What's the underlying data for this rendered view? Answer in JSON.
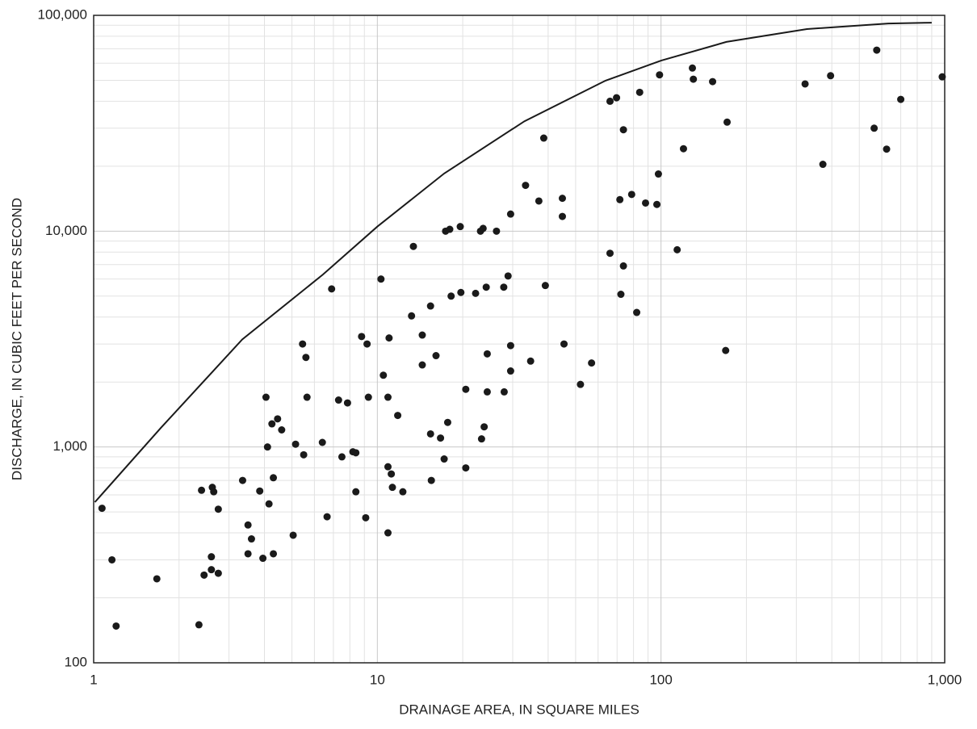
{
  "chart_data": {
    "type": "scatter",
    "xlabel": "DRAINAGE AREA, IN SQUARE MILES",
    "ylabel": "DISCHARGE, IN CUBIC FEET PER SECOND",
    "log_x": true,
    "log_y": true,
    "grid": true,
    "xlim": [
      1,
      1000
    ],
    "ylim": [
      100,
      100000
    ],
    "xticks": [
      1,
      10,
      100,
      {
        "value": 1000,
        "label": "1,000"
      }
    ],
    "yticks": [
      100,
      {
        "value": 1000,
        "label": "1,000"
      },
      {
        "value": 10000,
        "label": "10,000"
      },
      {
        "value": 100000,
        "label": "100,000"
      }
    ],
    "minor_xticks": [
      2,
      3,
      4,
      5,
      6,
      7,
      8,
      9,
      20,
      30,
      40,
      50,
      60,
      70,
      80,
      90,
      200,
      300,
      400,
      500,
      600,
      700,
      800,
      900
    ],
    "minor_yticks": [
      200,
      300,
      400,
      500,
      600,
      700,
      800,
      900,
      2000,
      3000,
      4000,
      5000,
      6000,
      7000,
      8000,
      9000,
      20000,
      30000,
      40000,
      50000,
      60000,
      70000,
      80000,
      90000
    ],
    "points": {
      "color": "#1a1a1a",
      "x": [
        1.07,
        1.16,
        1.2,
        1.67,
        2.35,
        2.4,
        2.45,
        2.6,
        2.6,
        2.62,
        2.65,
        2.75,
        2.75,
        3.35,
        3.5,
        3.5,
        3.6,
        3.85,
        3.95,
        4.05,
        4.1,
        4.15,
        4.25,
        4.3,
        4.3,
        4.45,
        4.6,
        5.05,
        5.15,
        5.45,
        5.5,
        5.6,
        5.65,
        6.4,
        6.65,
        6.9,
        7.3,
        7.5,
        7.85,
        8.2,
        8.4,
        8.4,
        8.8,
        9.1,
        9.2,
        9.3,
        10.3,
        10.5,
        10.9,
        10.9,
        10.9,
        11.0,
        11.2,
        11.3,
        11.8,
        12.3,
        13.4,
        13.2,
        14.4,
        14.4,
        15.4,
        15.4,
        15.5,
        16.1,
        16.7,
        17.2,
        17.4,
        17.7,
        18.0,
        18.2,
        19.6,
        19.7,
        20.5,
        20.5,
        22.2,
        23.1,
        23.3,
        23.6,
        23.8,
        24.2,
        24.4,
        24.4,
        26.3,
        27.9,
        28.0,
        28.9,
        29.5,
        29.5,
        29.5,
        33.3,
        34.7,
        37.1,
        38.6,
        39.1,
        44.9,
        44.9,
        45.5,
        52,
        56.9,
        66.1,
        66.1,
        69.7,
        71.6,
        72.2,
        73.7,
        73.7,
        78.8,
        82.1,
        84.1,
        88.2,
        96.7,
        97.9,
        98.8,
        114,
        120,
        129,
        130,
        152,
        169,
        171,
        322,
        372,
        396,
        564,
        576,
        624,
        700,
        980
      ],
      "y": [
        520,
        300,
        148,
        245,
        150,
        630,
        255,
        310,
        270,
        650,
        620,
        515,
        260,
        700,
        435,
        320,
        375,
        625,
        305,
        1700,
        1000,
        545,
        1280,
        720,
        320,
        1350,
        1200,
        390,
        1030,
        3000,
        920,
        2600,
        1700,
        1050,
        475,
        5400,
        1650,
        900,
        1600,
        950,
        940,
        620,
        3250,
        470,
        3000,
        1700,
        6000,
        2150,
        400,
        810,
        1700,
        3200,
        750,
        650,
        1400,
        620,
        8500,
        4050,
        3300,
        2400,
        4500,
        1150,
        700,
        2650,
        1100,
        880,
        10000,
        1300,
        10200,
        5000,
        10500,
        5200,
        1850,
        800,
        5150,
        10000,
        1090,
        10300,
        1240,
        5500,
        1800,
        2700,
        10000,
        5500,
        1800,
        6200,
        2950,
        2250,
        12000,
        16300,
        2500,
        13800,
        27000,
        5600,
        14200,
        11700,
        3000,
        1950,
        2450,
        7900,
        40000,
        41500,
        14000,
        5100,
        6900,
        29500,
        14800,
        4200,
        44000,
        13500,
        13300,
        18400,
        53000,
        8200,
        24100,
        57000,
        50600,
        49300,
        2800,
        32000,
        48100,
        20400,
        52500,
        30000,
        69000,
        24000,
        40800,
        51900
      ]
    },
    "curve": {
      "color": "#1a1a1a",
      "x": [
        1.01,
        1.73,
        3.34,
        6.43,
        10,
        17.2,
        33,
        63.7,
        100,
        170,
        327,
        632,
        900
      ],
      "y": [
        555,
        1230,
        3150,
        6300,
        10500,
        18500,
        32300,
        49800,
        61700,
        75300,
        86400,
        91700,
        92500
      ]
    }
  }
}
